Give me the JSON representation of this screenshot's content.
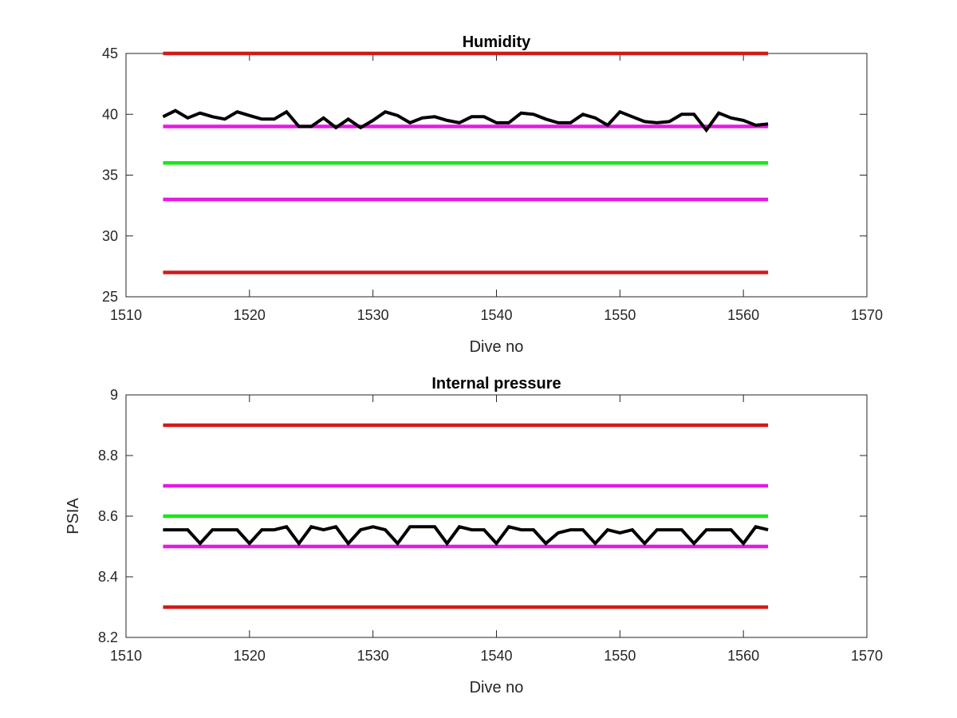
{
  "chart_data": [
    {
      "type": "line",
      "title": "Humidity",
      "xlabel": "Dive no",
      "ylabel": "",
      "xlim": [
        1510,
        1570
      ],
      "ylim": [
        25,
        45
      ],
      "xticks": [
        "1510",
        "1520",
        "1530",
        "1540",
        "1550",
        "1560",
        "1570"
      ],
      "yticks": [
        "25",
        "30",
        "35",
        "40",
        "45"
      ],
      "grid": false,
      "thresholds": [
        {
          "value": 45,
          "color": "#d11a1a"
        },
        {
          "value": 39,
          "color": "#e619e6"
        },
        {
          "value": 36,
          "color": "#19e619"
        },
        {
          "value": 33,
          "color": "#e619e6"
        },
        {
          "value": 27,
          "color": "#d11a1a"
        }
      ],
      "threshold_range": [
        1513,
        1562
      ],
      "series": [
        {
          "color": "#000000",
          "x": [
            1513,
            1514,
            1515,
            1516,
            1517,
            1518,
            1519,
            1520,
            1521,
            1522,
            1523,
            1524,
            1525,
            1526,
            1527,
            1528,
            1529,
            1530,
            1531,
            1532,
            1533,
            1534,
            1535,
            1536,
            1537,
            1538,
            1539,
            1540,
            1541,
            1542,
            1543,
            1544,
            1545,
            1546,
            1547,
            1548,
            1549,
            1550,
            1551,
            1552,
            1553,
            1554,
            1555,
            1556,
            1557,
            1558,
            1559,
            1560,
            1561,
            1562
          ],
          "values": [
            39.8,
            40.3,
            39.7,
            40.1,
            39.8,
            39.6,
            40.2,
            39.9,
            39.6,
            39.6,
            40.2,
            39.0,
            39.0,
            39.7,
            38.9,
            39.6,
            38.9,
            39.5,
            40.2,
            39.9,
            39.3,
            39.7,
            39.8,
            39.5,
            39.3,
            39.8,
            39.8,
            39.3,
            39.3,
            40.1,
            40.0,
            39.6,
            39.3,
            39.3,
            40.0,
            39.7,
            39.1,
            40.2,
            39.8,
            39.4,
            39.3,
            39.4,
            40.0,
            40.0,
            38.7,
            40.1,
            39.7,
            39.5,
            39.1,
            39.2
          ]
        }
      ]
    },
    {
      "type": "line",
      "title": "Internal pressure",
      "xlabel": "Dive no",
      "ylabel": "PSIA",
      "xlim": [
        1510,
        1570
      ],
      "ylim": [
        8.2,
        9.0
      ],
      "xticks": [
        "1510",
        "1520",
        "1530",
        "1540",
        "1550",
        "1560",
        "1570"
      ],
      "yticks": [
        "8.2",
        "8.4",
        "8.6",
        "8.8",
        "9"
      ],
      "grid": false,
      "thresholds": [
        {
          "value": 8.9,
          "color": "#d11a1a"
        },
        {
          "value": 8.7,
          "color": "#e619e6"
        },
        {
          "value": 8.6,
          "color": "#19e619"
        },
        {
          "value": 8.5,
          "color": "#e619e6"
        },
        {
          "value": 8.3,
          "color": "#d11a1a"
        }
      ],
      "threshold_range": [
        1513,
        1562
      ],
      "series": [
        {
          "color": "#000000",
          "x": [
            1513,
            1514,
            1515,
            1516,
            1517,
            1518,
            1519,
            1520,
            1521,
            1522,
            1523,
            1524,
            1525,
            1526,
            1527,
            1528,
            1529,
            1530,
            1531,
            1532,
            1533,
            1534,
            1535,
            1536,
            1537,
            1538,
            1539,
            1540,
            1541,
            1542,
            1543,
            1544,
            1545,
            1546,
            1547,
            1548,
            1549,
            1550,
            1551,
            1552,
            1553,
            1554,
            1555,
            1556,
            1557,
            1558,
            1559,
            1560,
            1561,
            1562
          ],
          "values": [
            8.555,
            8.555,
            8.555,
            8.51,
            8.555,
            8.555,
            8.555,
            8.51,
            8.555,
            8.555,
            8.565,
            8.51,
            8.565,
            8.555,
            8.565,
            8.51,
            8.555,
            8.565,
            8.555,
            8.51,
            8.565,
            8.565,
            8.565,
            8.51,
            8.565,
            8.555,
            8.555,
            8.51,
            8.565,
            8.555,
            8.555,
            8.51,
            8.545,
            8.555,
            8.555,
            8.51,
            8.555,
            8.545,
            8.555,
            8.51,
            8.555,
            8.555,
            8.555,
            8.51,
            8.555,
            8.555,
            8.555,
            8.51,
            8.565,
            8.555
          ]
        }
      ]
    }
  ]
}
